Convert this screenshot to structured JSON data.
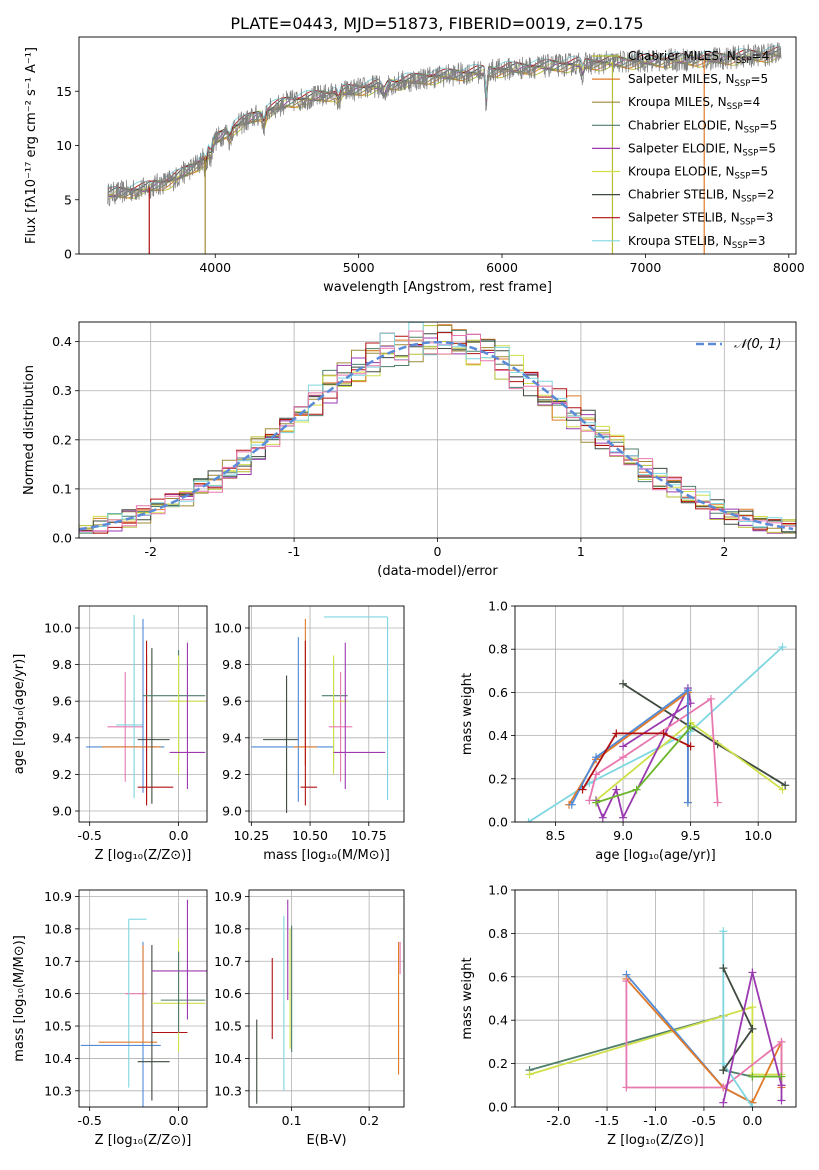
{
  "figure_title": "PLATE=0443, MJD=51873, FIBERID=0019, z=0.175",
  "colors": [
    "#b5bd32",
    "#8f9a2a",
    "#a08a3a",
    "#4f6b8a",
    "#8b2fa8",
    "#dbe84a",
    "#3e4a3e",
    "#b01010",
    "#7fd6e0"
  ],
  "chart_data": [
    {
      "id": "spectrum",
      "type": "line",
      "xlabel": "wavelength [Angstrom, rest frame]",
      "ylabel": "Flux [fλ10⁻¹⁷ erg cm⁻² s⁻¹ A⁻¹]",
      "xlim": [
        3050,
        8050
      ],
      "ylim": [
        0,
        20
      ],
      "xticks": [
        4000,
        5000,
        6000,
        7000,
        8000
      ],
      "yticks": [
        0,
        5,
        10,
        15
      ],
      "grid": false,
      "legend_placement": "top-right",
      "data_trace": {
        "name": "data",
        "color": "#808080",
        "x_range": [
          3250,
          7950
        ],
        "description_points": [
          [
            3250,
            5.5
          ],
          [
            3500,
            6.0
          ],
          [
            3700,
            6.8
          ],
          [
            3900,
            8.5
          ],
          [
            4000,
            10.5
          ],
          [
            4100,
            11.5
          ],
          [
            4300,
            12.8
          ],
          [
            4500,
            14.0
          ],
          [
            5000,
            15.2
          ],
          [
            5500,
            16.3
          ],
          [
            6000,
            17.0
          ],
          [
            6500,
            17.5
          ],
          [
            7000,
            17.8
          ],
          [
            7500,
            18.0
          ],
          [
            7950,
            18.5
          ]
        ]
      },
      "series": [
        {
          "name": "Chabrier MILES, Nₛₛₚ=4",
          "label_main": "Chabrier MILES, N",
          "label_sub": "SSP",
          "label_tail": "=4",
          "color": "#b5bd32"
        },
        {
          "name": "Salpeter MILES, Nₛₛₚ=5",
          "label_main": "Salpeter MILES, N",
          "label_sub": "SSP",
          "label_tail": "=5",
          "color": "#e07a2a"
        },
        {
          "name": "Kroupa MILES, Nₛₛₚ=4",
          "label_main": "Kroupa MILES, N",
          "label_sub": "SSP",
          "label_tail": "=4",
          "color": "#a08a3a"
        },
        {
          "name": "Chabrier ELODIE, Nₛₛₚ=5",
          "label_main": "Chabrier ELODIE, N",
          "label_sub": "SSP",
          "label_tail": "=5",
          "color": "#4f7f6a"
        },
        {
          "name": "Salpeter ELODIE, Nₛₛₚ=5",
          "label_main": "Salpeter ELODIE, N",
          "label_sub": "SSP",
          "label_tail": "=5",
          "color": "#9b3ab0"
        },
        {
          "name": "Kroupa ELODIE, Nₛₛₚ=5",
          "label_main": "Kroupa ELODIE, N",
          "label_sub": "SSP",
          "label_tail": "=5",
          "color": "#cfe04a"
        },
        {
          "name": "Chabrier STELIB, Nₛₛₚ=2",
          "label_main": "Chabrier STELIB, N",
          "label_sub": "SSP",
          "label_tail": "=2",
          "color": "#3e4a3e"
        },
        {
          "name": "Salpeter STELIB, Nₛₛₚ=3",
          "label_main": "Salpeter STELIB, N",
          "label_sub": "SSP",
          "label_tail": "=3",
          "color": "#b01010"
        },
        {
          "name": "Kroupa STELIB, Nₛₛₚ=3",
          "label_main": "Kroupa STELIB, N",
          "label_sub": "SSP",
          "label_tail": "=3",
          "color": "#7fd6e0"
        }
      ]
    },
    {
      "id": "residuals",
      "type": "line",
      "xlabel": "(data-model)/error",
      "ylabel": "Normed distribution",
      "xlim": [
        -2.5,
        2.5
      ],
      "ylim": [
        0,
        0.44
      ],
      "xticks": [
        -2,
        -1,
        0,
        1,
        2
      ],
      "yticks": [
        0.0,
        0.1,
        0.2,
        0.3,
        0.4
      ],
      "grid": true,
      "legend_placement": "top-right",
      "gaussian": {
        "name": "𝒩(0,1)",
        "label": "𝒩(0, 1)",
        "color": "#5b8bd8",
        "mu": 0,
        "sigma": 1
      },
      "histogram_bin_width": 0.1,
      "histogram_series_colors": [
        "#b5bd32",
        "#e07a2a",
        "#a08a3a",
        "#4f7f6a",
        "#9b3ab0",
        "#cfe04a",
        "#3e4a3e",
        "#b01010",
        "#7fd6e0",
        "#e879b0"
      ]
    },
    {
      "id": "age-vs-Z",
      "type": "scatter",
      "xlabel": "Z [log₁₀(Z/Z⊙)]",
      "ylabel": "age  [log₁₀(age/yr)]",
      "xlim": [
        -0.56,
        0.16
      ],
      "ylim": [
        8.94,
        10.12
      ],
      "xticks": [
        -0.5,
        0.0
      ],
      "yticks": [
        9.0,
        9.2,
        9.4,
        9.6,
        9.8,
        10.0
      ],
      "grid": true,
      "points": [
        {
          "x": -0.3,
          "y": 9.46,
          "xerr": [
            0.1,
            0.1
          ],
          "yerr": [
            0.3,
            0.3
          ],
          "color": "#e879b0"
        },
        {
          "x": -0.25,
          "y": 9.47,
          "xerr": [
            0.1,
            0.05
          ],
          "yerr": [
            0.4,
            0.6
          ],
          "color": "#7fd6e0"
        },
        {
          "x": -0.2,
          "y": 9.35,
          "xerr": [
            0.32,
            0.12
          ],
          "yerr": [
            0.25,
            0.7
          ],
          "color": "#4f8bd8"
        },
        {
          "x": -0.18,
          "y": 9.35,
          "xerr": [
            0.25,
            0.08
          ],
          "yerr": [
            0.3,
            0.5
          ],
          "color": "#e07a2a"
        },
        {
          "x": -0.15,
          "y": 9.39,
          "xerr": [
            0.08,
            0.1
          ],
          "yerr": [
            0.35,
            0.5
          ],
          "color": "#3e4a3e"
        },
        {
          "x": -0.18,
          "y": 9.13,
          "xerr": [
            0.05,
            0.15
          ],
          "yerr": [
            0.1,
            0.8
          ],
          "color": "#b01010"
        },
        {
          "x": 0.0,
          "y": 9.63,
          "xerr": [
            0.2,
            0.15
          ],
          "yerr": [
            0.35,
            0.25
          ],
          "color": "#4f7f6a"
        },
        {
          "x": 0.0,
          "y": 9.6,
          "xerr": [
            0.05,
            0.15
          ],
          "yerr": [
            0.4,
            0.25
          ],
          "color": "#cfe04a"
        },
        {
          "x": 0.05,
          "y": 9.32,
          "xerr": [
            0.1,
            0.1
          ],
          "yerr": [
            0.2,
            0.6
          ],
          "color": "#9b3ab0"
        }
      ]
    },
    {
      "id": "age-vs-mass",
      "type": "scatter",
      "xlabel": "mass [log₁₀(M/M⊙)]",
      "ylabel": "",
      "xlim": [
        10.24,
        10.9
      ],
      "ylim": [
        8.94,
        10.12
      ],
      "xticks": [
        10.25,
        10.5,
        10.75
      ],
      "yticks": [
        9.0,
        9.2,
        9.4,
        9.6,
        9.8,
        10.0
      ],
      "grid": true,
      "points": [
        {
          "x": 10.4,
          "y": 9.39,
          "xerr": [
            0.1,
            0.05
          ],
          "yerr": [
            0.4,
            0.35
          ],
          "color": "#3e4a3e"
        },
        {
          "x": 10.45,
          "y": 9.35,
          "xerr": [
            0.2,
            0.15
          ],
          "yerr": [
            0.3,
            0.6
          ],
          "color": "#4f8bd8"
        },
        {
          "x": 10.48,
          "y": 9.35,
          "xerr": [
            0.05,
            0.05
          ],
          "yerr": [
            0.1,
            0.7
          ],
          "color": "#e07a2a"
        },
        {
          "x": 10.48,
          "y": 9.13,
          "xerr": [
            0.02,
            0.05
          ],
          "yerr": [
            0.1,
            0.8
          ],
          "color": "#b01010"
        },
        {
          "x": 10.6,
          "y": 9.63,
          "xerr": [
            0.05,
            0.06
          ],
          "yerr": [
            0.4,
            0.2
          ],
          "color": "#4f7f6a"
        },
        {
          "x": 10.6,
          "y": 9.6,
          "xerr": [
            0.0,
            0.06
          ],
          "yerr": [
            0.4,
            0.25
          ],
          "color": "#cfe04a"
        },
        {
          "x": 10.63,
          "y": 9.46,
          "xerr": [
            0.05,
            0.05
          ],
          "yerr": [
            0.3,
            0.3
          ],
          "color": "#e879b0"
        },
        {
          "x": 10.65,
          "y": 9.32,
          "xerr": [
            0.05,
            0.17
          ],
          "yerr": [
            0.2,
            0.6
          ],
          "color": "#9b3ab0"
        },
        {
          "x": 10.83,
          "y": 10.06,
          "xerr": [
            0.27,
            0.0
          ],
          "yerr": [
            1.0,
            0.0
          ],
          "color": "#7fd6e0"
        }
      ]
    },
    {
      "id": "weight-vs-age",
      "type": "line",
      "xlabel": "age  [log₁₀(age/yr)]",
      "ylabel": "mass weight",
      "xlim": [
        8.2,
        10.28
      ],
      "ylim": [
        0.0,
        1.0
      ],
      "xticks": [
        8.5,
        9.0,
        9.5,
        10.0
      ],
      "yticks": [
        0.0,
        0.2,
        0.4,
        0.6,
        0.8,
        1.0
      ],
      "grid": true,
      "series": [
        {
          "color": "#7fd6e0",
          "x": [
            8.3,
            8.75,
            9.5,
            10.18
          ],
          "y": [
            0.0,
            0.18,
            0.42,
            0.81
          ]
        },
        {
          "color": "#3e4a3e",
          "x": [
            9.0,
            9.7,
            10.2
          ],
          "y": [
            0.64,
            0.36,
            0.17
          ]
        },
        {
          "color": "#cfe04a",
          "x": [
            8.8,
            9.5,
            10.18
          ],
          "y": [
            0.1,
            0.46,
            0.15
          ]
        },
        {
          "color": "#9b3ab0",
          "x": [
            8.8,
            8.85,
            8.95,
            9.0,
            9.48,
            9.5,
            9.0
          ],
          "y": [
            0.1,
            0.02,
            0.15,
            0.02,
            0.62,
            0.55,
            0.35
          ]
        },
        {
          "color": "#e879b0",
          "x": [
            8.75,
            8.8,
            9.0,
            9.65,
            9.7
          ],
          "y": [
            0.1,
            0.22,
            0.3,
            0.57,
            0.09
          ]
        },
        {
          "color": "#e07a2a",
          "x": [
            8.6,
            8.8,
            9.48,
            9.48
          ],
          "y": [
            0.08,
            0.29,
            0.6,
            0.09
          ]
        },
        {
          "color": "#4f8bd8",
          "x": [
            8.62,
            8.8,
            9.48,
            9.48
          ],
          "y": [
            0.08,
            0.3,
            0.61,
            0.09
          ]
        },
        {
          "color": "#b01010",
          "x": [
            8.7,
            8.95,
            9.3,
            9.5
          ],
          "y": [
            0.15,
            0.41,
            0.41,
            0.35
          ]
        },
        {
          "color": "#6bb52a",
          "x": [
            8.8,
            9.1,
            9.5
          ],
          "y": [
            0.09,
            0.15,
            0.44
          ]
        }
      ]
    },
    {
      "id": "mass-vs-Z",
      "type": "scatter",
      "xlabel": "Z [log₁₀(Z/Z⊙)]",
      "ylabel": "mass [log₁₀(M/M⊙)]",
      "xlim": [
        -0.56,
        0.16
      ],
      "ylim": [
        10.25,
        10.92
      ],
      "xticks": [
        -0.5,
        0.0
      ],
      "yticks": [
        10.3,
        10.4,
        10.5,
        10.6,
        10.7,
        10.8,
        10.9
      ],
      "grid": true,
      "points": [
        {
          "x": -0.3,
          "y": 10.6,
          "xerr": [
            0.0,
            0.12
          ],
          "yerr": [
            0.0,
            0.0
          ],
          "color": "#e879b0"
        },
        {
          "x": -0.28,
          "y": 10.83,
          "xerr": [
            0.0,
            0.1
          ],
          "yerr": [
            0.52,
            0.0
          ],
          "color": "#7fd6e0"
        },
        {
          "x": -0.2,
          "y": 10.44,
          "xerr": [
            0.35,
            0.1
          ],
          "yerr": [
            0.2,
            0.32
          ],
          "color": "#4f8bd8"
        },
        {
          "x": -0.2,
          "y": 10.45,
          "xerr": [
            0.25,
            0.08
          ],
          "yerr": [
            0.0,
            0.3
          ],
          "color": "#e07a2a"
        },
        {
          "x": -0.15,
          "y": 10.39,
          "xerr": [
            0.08,
            0.1
          ],
          "yerr": [
            0.12,
            0.36
          ],
          "color": "#3e4a3e"
        },
        {
          "x": -0.15,
          "y": 10.48,
          "xerr": [
            0.0,
            0.2
          ],
          "yerr": [
            0.0,
            0.0
          ],
          "color": "#b01010"
        },
        {
          "x": 0.0,
          "y": 10.57,
          "xerr": [
            0.15,
            0.15
          ],
          "yerr": [
            0.15,
            0.2
          ],
          "color": "#cfe04a"
        },
        {
          "x": 0.0,
          "y": 10.58,
          "xerr": [
            0.1,
            0.15
          ],
          "yerr": [
            0.1,
            0.15
          ],
          "color": "#4f7f6a"
        },
        {
          "x": 0.05,
          "y": 10.67,
          "xerr": [
            0.2,
            0.2
          ],
          "yerr": [
            0.15,
            0.22
          ],
          "color": "#9b3ab0"
        }
      ]
    },
    {
      "id": "mass-vs-ebv",
      "type": "scatter",
      "xlabel": "E(B-V)",
      "ylabel": "",
      "xlim": [
        0.045,
        0.245
      ],
      "ylim": [
        10.25,
        10.92
      ],
      "xticks": [
        0.1,
        0.2
      ],
      "yticks": [
        10.3,
        10.4,
        10.5,
        10.6,
        10.7,
        10.8,
        10.9
      ],
      "grid": true,
      "points": [
        {
          "x": 0.055,
          "y": 10.39,
          "xerr": [
            0,
            0
          ],
          "yerr": [
            0.13,
            0.13
          ],
          "color": "#3e4a3e"
        },
        {
          "x": 0.075,
          "y": 10.58,
          "xerr": [
            0,
            0
          ],
          "yerr": [
            0.12,
            0.13
          ],
          "color": "#b01010"
        },
        {
          "x": 0.09,
          "y": 10.57,
          "xerr": [
            0,
            0
          ],
          "yerr": [
            0.27,
            0.27
          ],
          "color": "#7fd6e0"
        },
        {
          "x": 0.095,
          "y": 10.73,
          "xerr": [
            0,
            0
          ],
          "yerr": [
            0.15,
            0.16
          ],
          "color": "#9b3ab0"
        },
        {
          "x": 0.098,
          "y": 10.6,
          "xerr": [
            0,
            0
          ],
          "yerr": [
            0.17,
            0.2
          ],
          "color": "#cfe04a"
        },
        {
          "x": 0.1,
          "y": 10.61,
          "xerr": [
            0,
            0
          ],
          "yerr": [
            0.19,
            0.2
          ],
          "color": "#4f7f6a"
        },
        {
          "x": 0.238,
          "y": 10.55,
          "xerr": [
            0,
            0
          ],
          "yerr": [
            0.2,
            0.21
          ],
          "color": "#e07a2a"
        },
        {
          "x": 0.24,
          "y": 10.7,
          "xerr": [
            0,
            0
          ],
          "yerr": [
            0.04,
            0.06
          ],
          "color": "#e879b0"
        }
      ]
    },
    {
      "id": "weight-vs-Z",
      "type": "line",
      "xlabel": "Z [log₁₀(Z/Z⊙)]",
      "ylabel": "mass weight",
      "xlim": [
        -2.45,
        0.45
      ],
      "ylim": [
        0.0,
        1.0
      ],
      "xticks": [
        -2.0,
        -1.5,
        -1.0,
        -0.5,
        0.0
      ],
      "yticks": [
        0.0,
        0.2,
        0.4,
        0.6,
        0.8,
        1.0
      ],
      "grid": true,
      "series": [
        {
          "color": "#4f7f6a",
          "x": [
            -2.3,
            -0.3,
            -0.3,
            0.0
          ],
          "y": [
            0.17,
            0.42,
            0.17,
            0.14
          ]
        },
        {
          "color": "#cfe04a",
          "x": [
            -2.3,
            0.0,
            0.0,
            0.3
          ],
          "y": [
            0.15,
            0.46,
            0.15,
            0.15
          ]
        },
        {
          "color": "#4f8bd8",
          "x": [
            -1.3,
            -0.3,
            0.0
          ],
          "y": [
            0.61,
            0.09,
            0.02
          ]
        },
        {
          "color": "#e07a2a",
          "x": [
            -1.3,
            -0.3,
            0.0,
            0.3,
            0.3
          ],
          "y": [
            0.59,
            0.09,
            0.02,
            0.3,
            0.09
          ]
        },
        {
          "color": "#e879b0",
          "x": [
            -1.3,
            -1.3,
            -0.3,
            0.3,
            0.3
          ],
          "y": [
            0.58,
            0.09,
            0.09,
            0.3,
            0.1
          ]
        },
        {
          "color": "#7fd6e0",
          "x": [
            -0.3,
            -0.3,
            0.0
          ],
          "y": [
            0.81,
            0.2,
            0.0
          ]
        },
        {
          "color": "#3e4a3e",
          "x": [
            -0.3,
            0.0,
            -0.3
          ],
          "y": [
            0.64,
            0.36,
            0.17
          ]
        },
        {
          "color": "#9b3ab0",
          "x": [
            -0.3,
            0.0,
            0.3,
            0.3
          ],
          "y": [
            0.02,
            0.62,
            0.1,
            0.03
          ]
        },
        {
          "color": "#6bb52a",
          "x": [
            0.0,
            0.3
          ],
          "y": [
            0.14,
            0.14
          ]
        }
      ]
    }
  ]
}
